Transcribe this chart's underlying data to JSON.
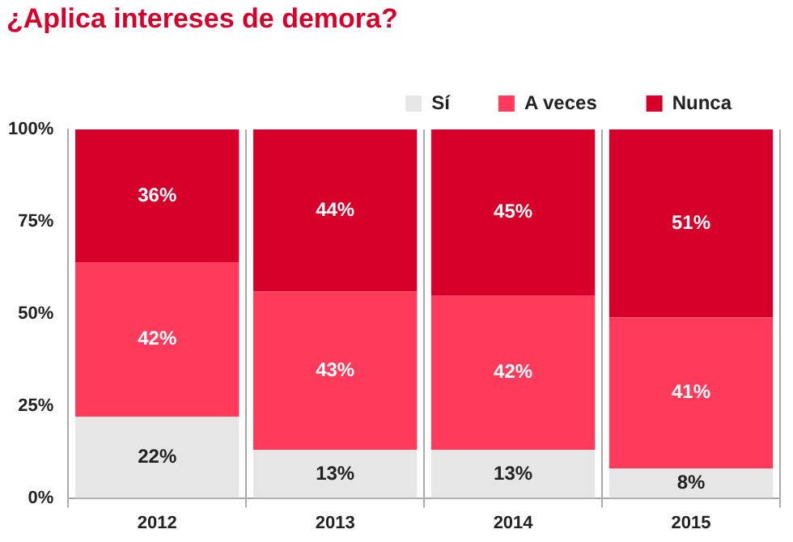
{
  "chart_data": {
    "type": "bar",
    "title": "¿Aplica intereses de demora?",
    "categories": [
      "2012",
      "2013",
      "2014",
      "2015"
    ],
    "stacked": true,
    "ylim": [
      0,
      100
    ],
    "yticks": [
      {
        "value": 0,
        "label": "0%"
      },
      {
        "value": 25,
        "label": "25%"
      },
      {
        "value": 50,
        "label": "50%"
      },
      {
        "value": 75,
        "label": "75%"
      },
      {
        "value": 100,
        "label": "100%"
      }
    ],
    "grid": "x",
    "legend": "top right",
    "series": [
      {
        "name": "Sí",
        "color": "#e6e6e6",
        "values": [
          22,
          13,
          13,
          8
        ],
        "value_labels": [
          "22%",
          "13%",
          "13%",
          "8%"
        ]
      },
      {
        "name": "A veces",
        "color": "#ff3a5a",
        "values": [
          42,
          43,
          42,
          41
        ],
        "value_labels": [
          "42%",
          "43%",
          "42%",
          "41%"
        ]
      },
      {
        "name": "Nunca",
        "color": "#d6002a",
        "values": [
          36,
          44,
          45,
          51
        ],
        "value_labels": [
          "36%",
          "44%",
          "45%",
          "51%"
        ]
      }
    ]
  }
}
